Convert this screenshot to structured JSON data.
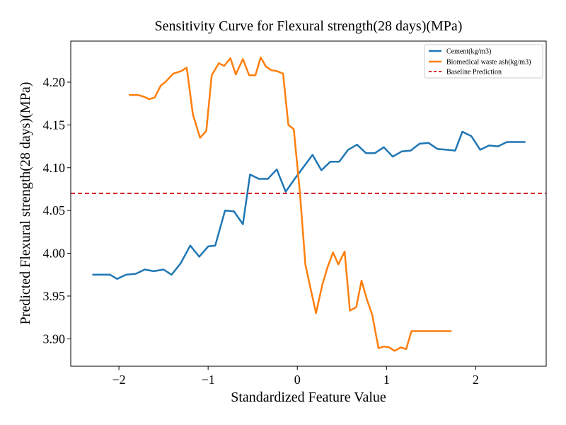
{
  "chart_data": {
    "type": "line",
    "title": "Sensitivity Curve for Flexural strength(28 days)(MPa)",
    "xlabel": "Standardized Feature Value",
    "ylabel": "Predicted Flexural strength(28 days)(MPa)",
    "xlim": [
      -2.54,
      2.79
    ],
    "ylim": [
      3.868,
      4.248
    ],
    "xticks": [
      -2,
      -1,
      0,
      1,
      2
    ],
    "xtick_labels": [
      "−2",
      "−1",
      "0",
      "1",
      "2"
    ],
    "yticks": [
      3.9,
      3.95,
      4.0,
      4.05,
      4.1,
      4.15,
      4.2
    ],
    "ytick_labels": [
      "3.90",
      "3.95",
      "4.00",
      "4.05",
      "4.10",
      "4.15",
      "4.20"
    ],
    "grid": false,
    "legend_position": "top-right",
    "baseline": {
      "name": "Baseline Prediction",
      "value": 4.07,
      "color": "#d62728",
      "style": "dashed"
    },
    "series": [
      {
        "name": "Cement(kg/m3)",
        "color": "#1f77b4",
        "x": [
          -2.29,
          -2.19,
          -2.1,
          -2.02,
          -1.92,
          -1.81,
          -1.71,
          -1.61,
          -1.5,
          -1.41,
          -1.31,
          -1.2,
          -1.1,
          -1.0,
          -0.92,
          -0.81,
          -0.71,
          -0.61,
          -0.53,
          -0.43,
          -0.33,
          -0.23,
          -0.13,
          -0.03,
          0.07,
          0.17,
          0.27,
          0.37,
          0.47,
          0.57,
          0.67,
          0.77,
          0.87,
          0.97,
          1.07,
          1.17,
          1.27,
          1.37,
          1.47,
          1.57,
          1.67,
          1.77,
          1.85,
          1.95,
          2.05,
          2.15,
          2.25,
          2.35,
          2.45,
          2.55
        ],
        "y": [
          3.975,
          3.975,
          3.975,
          3.97,
          3.975,
          3.976,
          3.981,
          3.979,
          3.981,
          3.975,
          3.988,
          4.009,
          3.996,
          4.008,
          4.009,
          4.05,
          4.049,
          4.034,
          4.092,
          4.087,
          4.087,
          4.098,
          4.072,
          4.087,
          4.101,
          4.115,
          4.097,
          4.107,
          4.107,
          4.121,
          4.127,
          4.117,
          4.117,
          4.124,
          4.113,
          4.119,
          4.12,
          4.128,
          4.129,
          4.122,
          4.121,
          4.12,
          4.142,
          4.137,
          4.121,
          4.126,
          4.125,
          4.13,
          4.13,
          4.13
        ]
      },
      {
        "name": "Biomedical waste ash(kg/m3)",
        "color": "#ff7f0e",
        "x": [
          -1.88,
          -1.79,
          -1.72,
          -1.66,
          -1.6,
          -1.53,
          -1.48,
          -1.39,
          -1.3,
          -1.24,
          -1.17,
          -1.09,
          -1.02,
          -0.96,
          -0.88,
          -0.82,
          -0.75,
          -0.69,
          -0.61,
          -0.54,
          -0.47,
          -0.41,
          -0.35,
          -0.29,
          -0.23,
          -0.16,
          -0.1,
          -0.04,
          0.03,
          0.09,
          0.15,
          0.21,
          0.28,
          0.34,
          0.4,
          0.46,
          0.53,
          0.59,
          0.66,
          0.72,
          0.78,
          0.84,
          0.91,
          0.97,
          1.03,
          1.09,
          1.16,
          1.22,
          1.28,
          1.34,
          1.4,
          1.47,
          1.53,
          1.59,
          1.65,
          1.72
        ],
        "y": [
          4.185,
          4.185,
          4.183,
          4.18,
          4.182,
          4.196,
          4.2,
          4.21,
          4.213,
          4.217,
          4.162,
          4.135,
          4.143,
          4.208,
          4.222,
          4.219,
          4.228,
          4.209,
          4.227,
          4.208,
          4.208,
          4.229,
          4.218,
          4.214,
          4.213,
          4.21,
          4.15,
          4.145,
          4.07,
          3.987,
          3.958,
          3.93,
          3.963,
          3.984,
          4.001,
          3.987,
          4.002,
          3.933,
          3.937,
          3.968,
          3.946,
          3.928,
          3.889,
          3.891,
          3.89,
          3.886,
          3.89,
          3.888,
          3.909,
          3.909,
          3.909,
          3.909,
          3.909,
          3.909,
          3.909,
          3.909
        ]
      }
    ]
  }
}
